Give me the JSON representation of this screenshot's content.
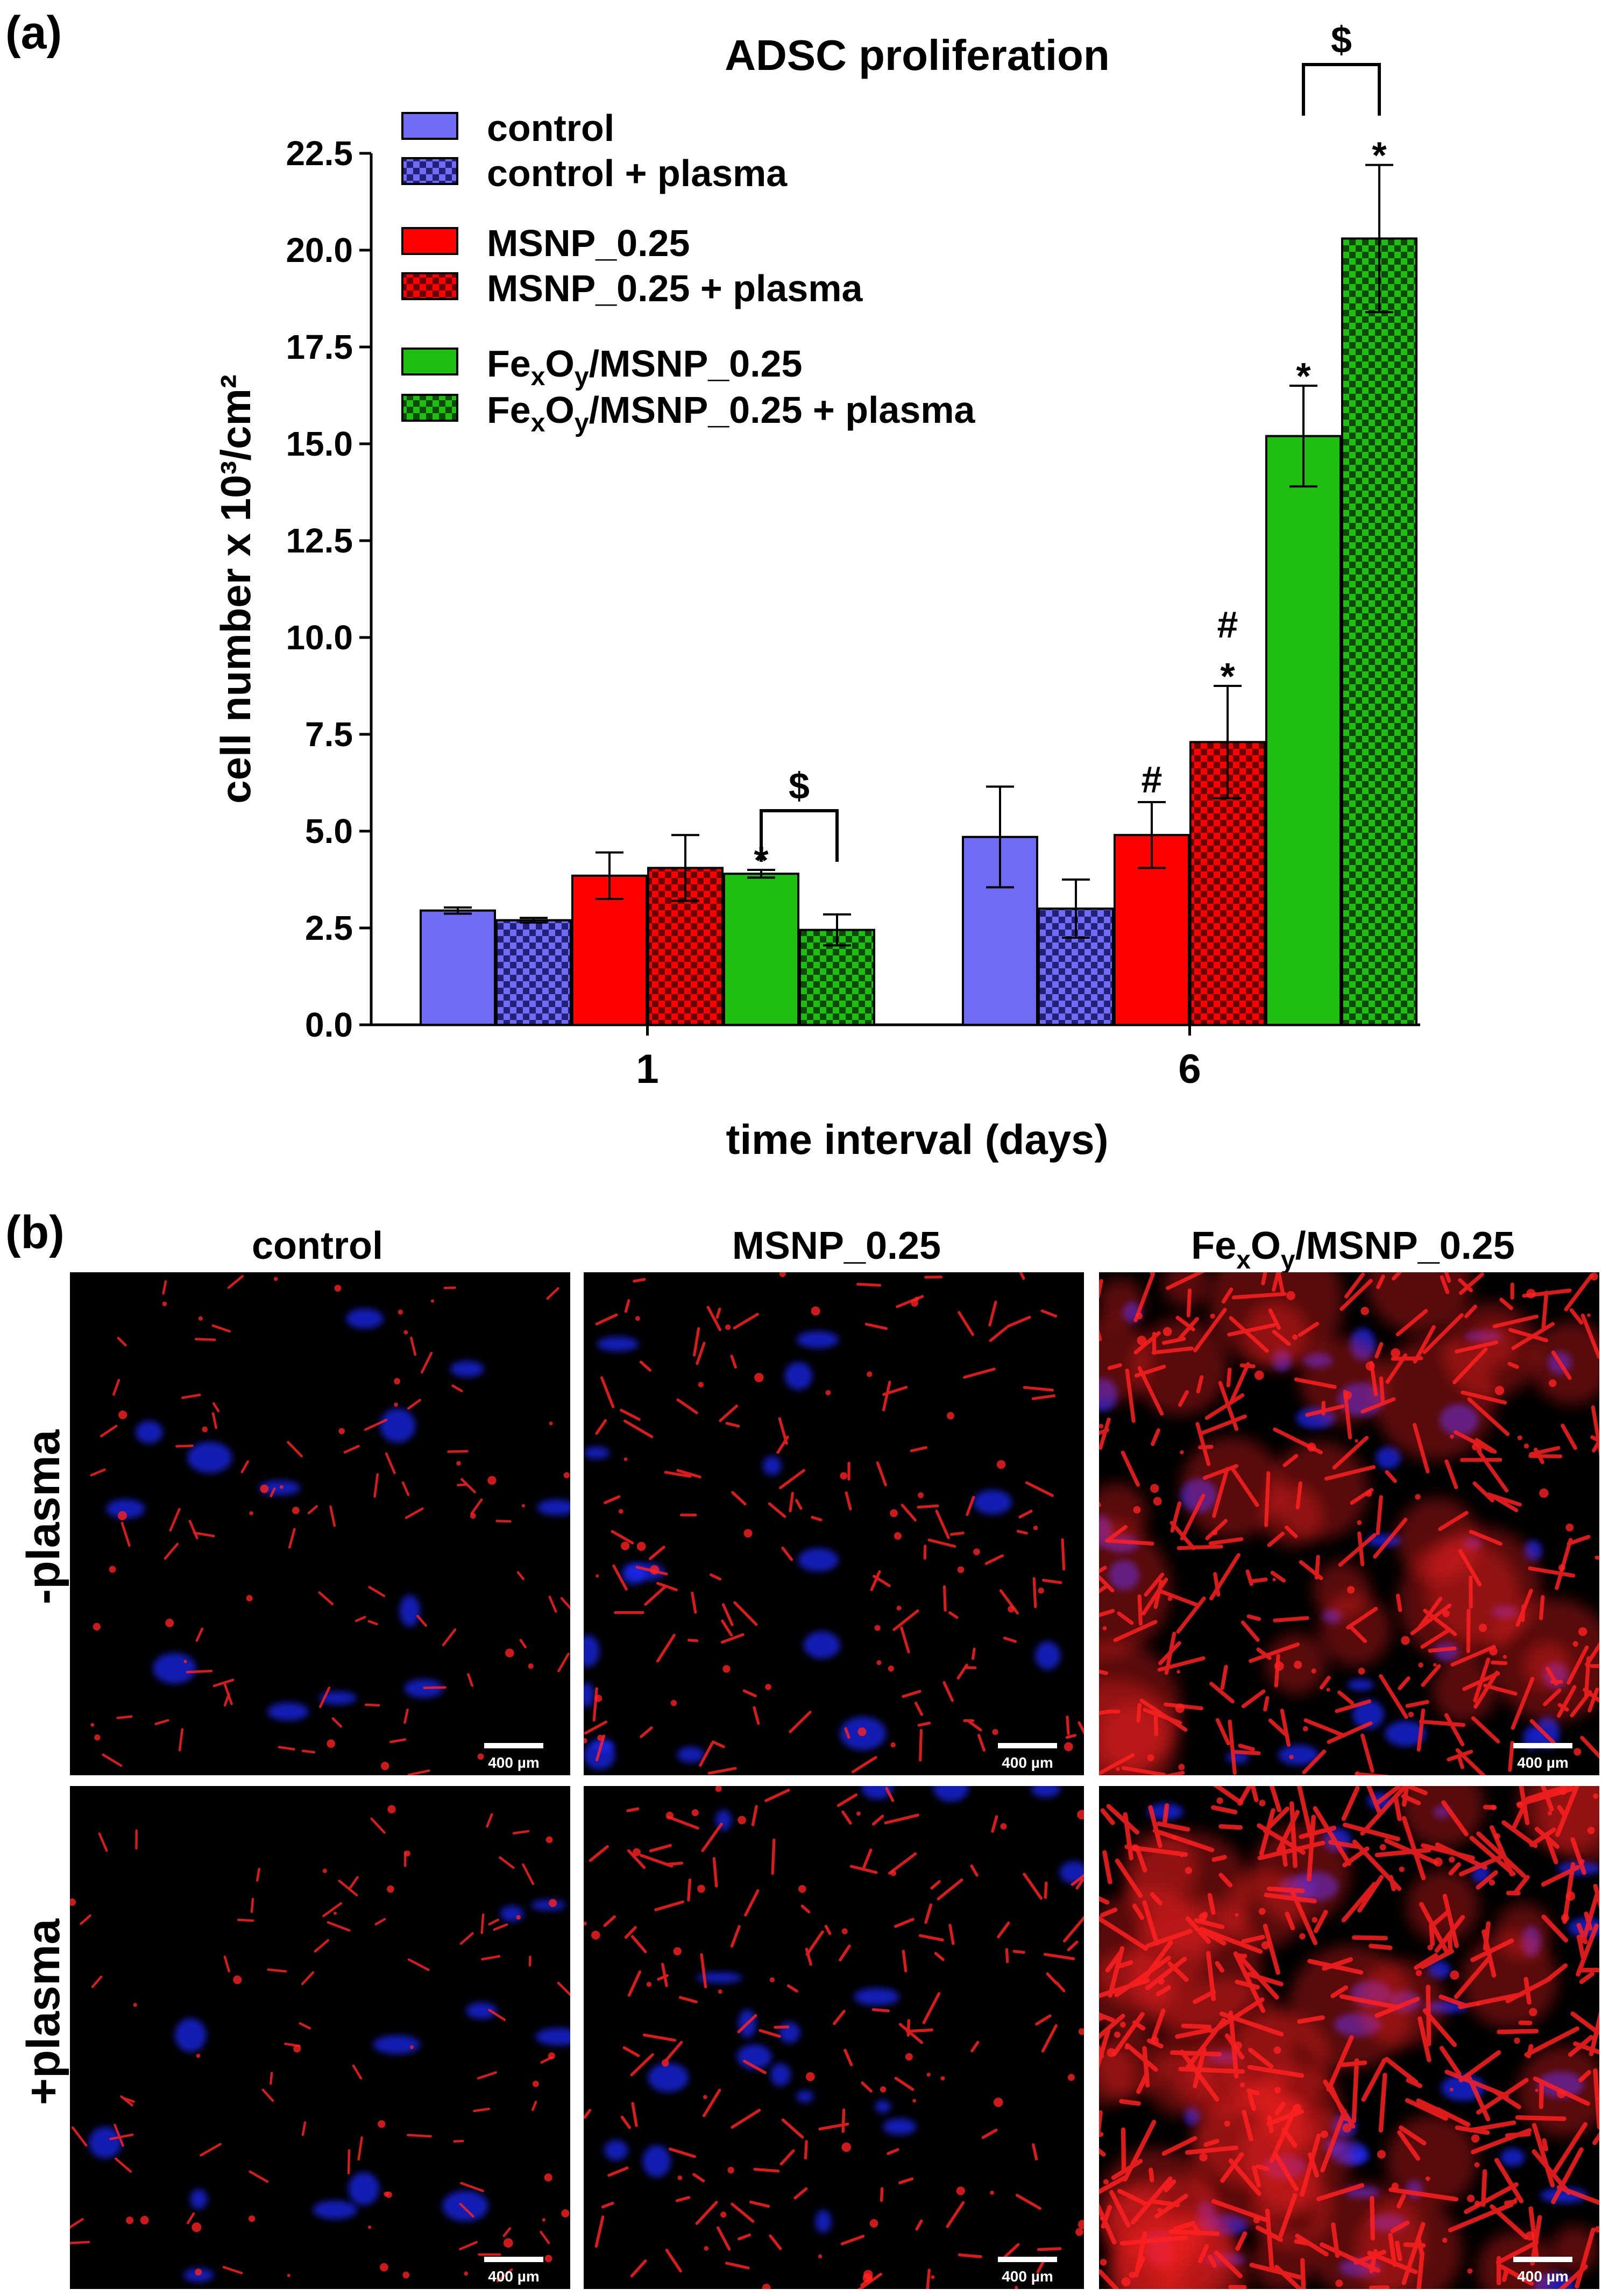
{
  "panel_a_label": "(a)",
  "panel_b_label": "(b)",
  "colors": {
    "control": "#6f6cf3",
    "msnp": "#ff0000",
    "fexoy": "#1fbf12",
    "control_check_dark": "#23207a",
    "msnp_check_dark": "#6a0000",
    "fexoy_check_dark": "#0a4a05"
  },
  "chart_data": {
    "type": "bar",
    "title": "ADSC proliferation",
    "xlabel": "time interval (days)",
    "ylabel": "cell number x 10³/cm²",
    "ylim": [
      0,
      22.5
    ],
    "yticks": [
      "0.0",
      "2.5",
      "5.0",
      "7.5",
      "10.0",
      "12.5",
      "15.0",
      "17.5",
      "20.0",
      "22.5"
    ],
    "categories": [
      "1",
      "6"
    ],
    "series": [
      {
        "name": "control",
        "color_key": "control",
        "pattern": "solid",
        "values": [
          2.95,
          4.85
        ],
        "errors": [
          0.08,
          1.3
        ]
      },
      {
        "name": "control + plasma",
        "color_key": "control",
        "pattern": "checker",
        "values": [
          2.7,
          3.0
        ],
        "errors": [
          0.06,
          0.75
        ]
      },
      {
        "name": "MSNP_0.25",
        "color_key": "msnp",
        "pattern": "solid",
        "values": [
          3.85,
          4.9
        ],
        "errors": [
          0.6,
          0.85
        ]
      },
      {
        "name": "MSNP_0.25 + plasma",
        "color_key": "msnp",
        "pattern": "checker",
        "values": [
          4.05,
          7.3
        ],
        "errors": [
          0.85,
          1.45
        ]
      },
      {
        "name": "FexOy/MSNP_0.25",
        "color_key": "fexoy",
        "pattern": "solid",
        "values": [
          3.9,
          15.2
        ],
        "errors": [
          0.1,
          1.3
        ]
      },
      {
        "name": "FexOy/MSNP_0.25 + plasma",
        "color_key": "fexoy",
        "pattern": "checker",
        "values": [
          2.45,
          20.3
        ],
        "errors": [
          0.4,
          1.9
        ]
      }
    ],
    "legend": {
      "placement": "top-left",
      "entries": [
        {
          "label": "control"
        },
        {
          "label": "control + plasma"
        },
        {
          "label": "MSNP_0.25"
        },
        {
          "label": "MSNP_0.25 + plasma"
        },
        {
          "label_parts": [
            "Fe",
            "x",
            "O",
            "y",
            "/MSNP_0.25"
          ]
        },
        {
          "label_parts": [
            "Fe",
            "x",
            "O",
            "y",
            "/MSNP_0.25 + plasma"
          ]
        }
      ]
    },
    "annotations": [
      {
        "text": "*",
        "category": 0,
        "series": 4
      },
      {
        "text": "#",
        "category": 1,
        "series": 2
      },
      {
        "text": "*",
        "category": 1,
        "series": 3
      },
      {
        "text": "#",
        "category": 1,
        "series": 3
      },
      {
        "text": "*",
        "category": 1,
        "series": 4
      },
      {
        "text": "*",
        "category": 1,
        "series": 5
      }
    ],
    "brackets": [
      {
        "text": "$",
        "category": 0,
        "from_series": 4,
        "to_series": 5
      },
      {
        "text": "$",
        "category": 1,
        "from_series": 4,
        "to_series": 5
      }
    ]
  },
  "micrograph_grid": {
    "col_headers": [
      "control",
      "MSNP_0.25"
    ],
    "col_header_fexoy_parts": [
      "Fe",
      "x",
      "O",
      "y",
      "/MSNP_0.25"
    ],
    "row_headers": [
      "-plasma",
      "+plasma"
    ],
    "scale_bar_label": "400 µm",
    "stain_colors": {
      "actin": "#ff2020",
      "nuclei": "#1a2aff"
    }
  }
}
